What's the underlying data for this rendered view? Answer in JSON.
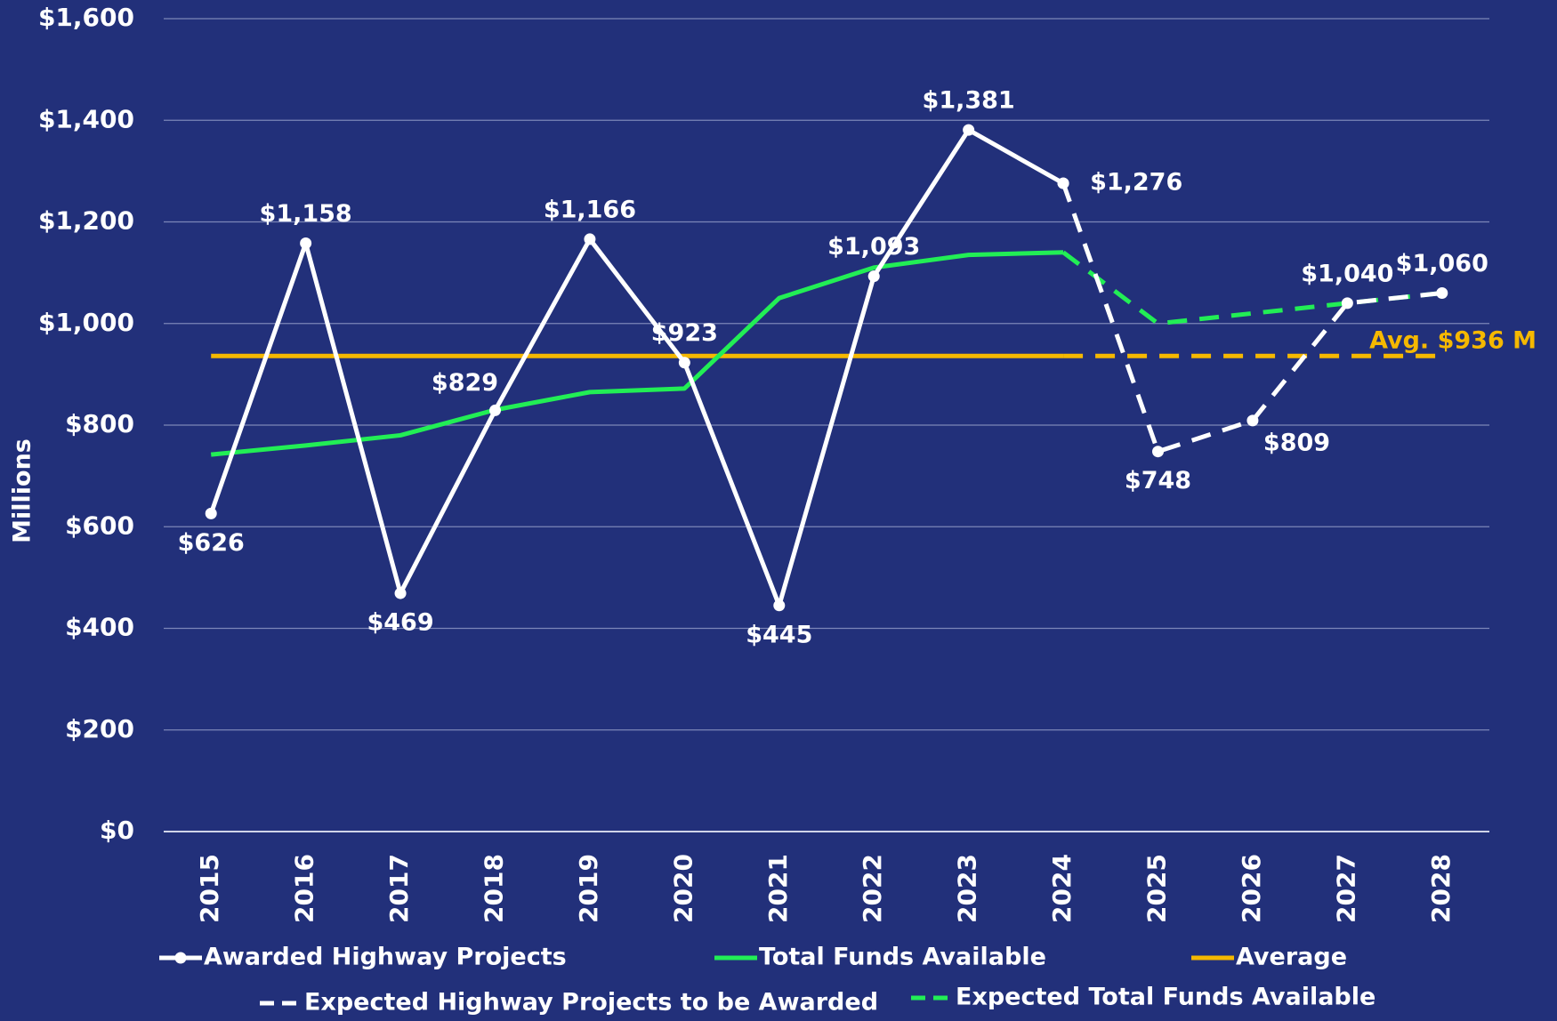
{
  "chart_data": {
    "type": "line",
    "categories": [
      "2015",
      "2016",
      "2017",
      "2018",
      "2019",
      "2020",
      "2021",
      "2022",
      "2023",
      "2024",
      "2025",
      "2026",
      "2027",
      "2028"
    ],
    "y_axis_label": "Millions",
    "ylim": [
      0,
      1600
    ],
    "yticks": [
      {
        "value": 0,
        "label": "$0"
      },
      {
        "value": 200,
        "label": "$200"
      },
      {
        "value": 400,
        "label": "$400"
      },
      {
        "value": 600,
        "label": "$600"
      },
      {
        "value": 800,
        "label": "$800"
      },
      {
        "value": 1000,
        "label": "$1,000"
      },
      {
        "value": 1200,
        "label": "$1,200"
      },
      {
        "value": 1400,
        "label": "$1,400"
      },
      {
        "value": 1600,
        "label": "$1,600"
      }
    ],
    "grid": true,
    "series": [
      {
        "name": "Awarded Highway Projects",
        "color": "#ffffff",
        "dashed": false,
        "marker": true,
        "values": [
          626,
          1158,
          469,
          829,
          1166,
          923,
          445,
          1093,
          1381,
          1276,
          null,
          null,
          null,
          null
        ],
        "value_labels": [
          "$626",
          "$1,158",
          "$469",
          "$829",
          "$1,166",
          "$923",
          "$445",
          "$1,093",
          "$1,381",
          "$1,276",
          null,
          null,
          null,
          null
        ]
      },
      {
        "name": "Total Funds Available",
        "color": "#22ee55",
        "dashed": false,
        "marker": false,
        "values": [
          742,
          760,
          780,
          830,
          865,
          872,
          1050,
          1110,
          1135,
          1140,
          null,
          null,
          null,
          null
        ]
      },
      {
        "name": "Average",
        "color": "#f5b800",
        "dashed": false,
        "marker": false,
        "dashed_from_category": "2024",
        "values": [
          936,
          936,
          936,
          936,
          936,
          936,
          936,
          936,
          936,
          936,
          936,
          936,
          936,
          936
        ]
      },
      {
        "name": "Expected Highway Projects to be Awarded",
        "color": "#ffffff",
        "dashed": true,
        "marker": true,
        "values": [
          null,
          null,
          null,
          null,
          null,
          null,
          null,
          null,
          null,
          1276,
          748,
          809,
          1040,
          1060
        ],
        "value_labels": [
          null,
          null,
          null,
          null,
          null,
          null,
          null,
          null,
          null,
          null,
          "$748",
          "$809",
          "$1,040",
          "$1,060"
        ]
      },
      {
        "name": "Expected Total Funds Available",
        "color": "#22ee55",
        "dashed": true,
        "marker": false,
        "values": [
          null,
          null,
          null,
          null,
          null,
          null,
          null,
          null,
          null,
          1140,
          1000,
          1020,
          1040,
          1060
        ]
      }
    ],
    "annotations": [
      {
        "text": "Avg. $936 M",
        "color": "#f5b800"
      }
    ]
  }
}
